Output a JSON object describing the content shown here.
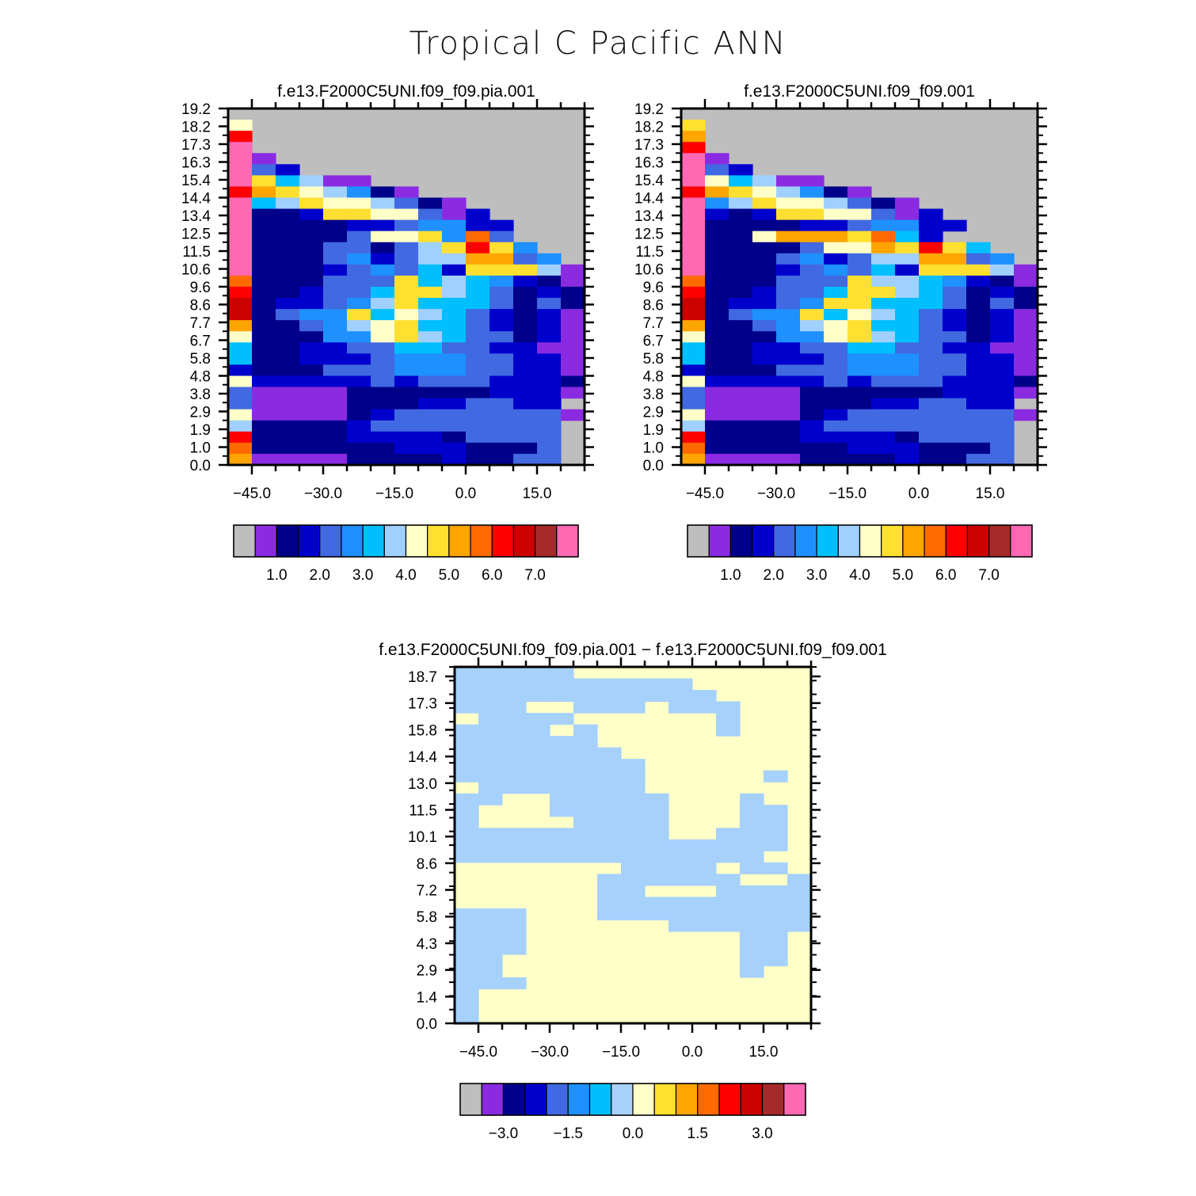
{
  "page_title": "Tropical C Pacific ANN",
  "colors": {
    "panel_palette": [
      "#bebebe",
      "#8a2be2",
      "#00008b",
      "#0000cd",
      "#4169e1",
      "#1e90ff",
      "#00bfff",
      "#a0d0ff",
      "#ffffc8",
      "#ffe030",
      "#ffa500",
      "#ff6a00",
      "#ff0000",
      "#cd0000",
      "#a52a2a",
      "#ff69b4"
    ],
    "gray": "#bebebe",
    "dlight": "#a6d1fc",
    "dyellow": "#ffffc8"
  },
  "chart_data": [
    {
      "type": "heatmap",
      "title": "f.e13.F2000C5UNI.f09_f09.pia.001",
      "x_ticks": [
        "-45.0",
        "-30.0",
        "-15.0",
        "0.0",
        "15.0"
      ],
      "y_ticks": [
        "19.2",
        "18.2",
        "17.3",
        "16.3",
        "15.4",
        "14.4",
        "13.4",
        "12.5",
        "11.5",
        "10.6",
        "9.6",
        "8.6",
        "7.7",
        "6.7",
        "5.8",
        "4.8",
        "3.8",
        "2.9",
        "1.9",
        "1.0",
        "0.0"
      ],
      "xlim": [
        -50,
        25
      ],
      "ylim": [
        0,
        19.2
      ],
      "colorbar_labels": [
        "1.0",
        "2.0",
        "3.0",
        "4.0",
        "5.0",
        "6.0",
        "7.0"
      ],
      "grid_rows": [
        "000000000000000",
        "800000000000000",
        "C00000000000000",
        "F00000000000000",
        "F10000000000000",
        "F43000000000000",
        "F96711000000000",
        "CA9875210000000",
        "F67988742100000",
        "F22399884130000",
        "F22223345533000",
        "F222248895B4000",
        "F222442479C9500",
        "F222453477AA450",
        "F222345463999710",
        "B222444967653210",
        "C223446997642320",
        "D233457966642420",
        "D245596876432310",
        "A224578966432310",
        "8222558976442310",
        "6223344664433110",
        "6223334555443311",
        "3222444555443311",
        "8333334344433321",
        "4111122222233311",
        "4111122233443300",
        "8111123444444410",
        "7222234444444400",
        "C222233332444400",
        "B222222333222400",
        "A111122223224400"
      ]
    },
    {
      "type": "heatmap",
      "title": "f.e13.F2000C5UNI.f09_f09.001",
      "x_ticks": [
        "-45.0",
        "-30.0",
        "-15.0",
        "0.0",
        "15.0"
      ],
      "y_ticks": [
        "19.2",
        "18.2",
        "17.3",
        "16.3",
        "15.4",
        "14.4",
        "13.4",
        "12.5",
        "11.5",
        "10.6",
        "9.6",
        "8.6",
        "7.7",
        "6.7",
        "5.8",
        "4.8",
        "3.8",
        "2.9",
        "1.9",
        "1.0",
        "0.0"
      ],
      "xlim": [
        -50,
        25
      ],
      "ylim": [
        0,
        19.2
      ],
      "colorbar_labels": [
        "1.0",
        "2.0",
        "3.0",
        "4.0",
        "5.0",
        "6.0",
        "7.0"
      ],
      "grid_rows": [
        "000000000000000",
        "900000000000000",
        "A00000000000000",
        "C00000000000000",
        "F10000000000000",
        "F43000000000000",
        "F86711000000000",
        "CA9875210000000",
        "F57988742100000",
        "F32399884130000",
        "F22223345533000",
        "F228AAA9B63000",
        "F2222488A9C9600",
        "F222453477AA450",
        "F222345463999710",
        "B222444977653210",
        "C223446997642320",
        "D233459966642420",
        "D245596876432310",
        "A224578966432310",
        "8222558976442310",
        "6223344664433110",
        "6223334555443311",
        "3222444555443311",
        "8333334344433321",
        "4111122222233311",
        "4111122233443300",
        "8111123444444410",
        "7222234444444400",
        "C222233332444400",
        "B222222333222400",
        "A111122223224400"
      ]
    },
    {
      "type": "heatmap",
      "title": "f.e13.F2000C5UNI.f09_f09.pia.001 − f.e13.F2000C5UNI.f09_f09.001",
      "x_ticks": [
        "-45.0",
        "-30.0",
        "-15.0",
        "0.0",
        "15.0"
      ],
      "y_ticks": [
        "18.7",
        "17.3",
        "15.8",
        "14.4",
        "13.0",
        "11.5",
        "10.1",
        "8.6",
        "7.2",
        "5.8",
        "4.3",
        "2.9",
        "1.4",
        "0.0"
      ],
      "xlim": [
        -50,
        25
      ],
      "ylim": [
        0,
        19.2
      ],
      "colorbar_labels": [
        "-3.0",
        "-1.5",
        "0.0",
        "1.5",
        "3.0"
      ],
      "grid_rows": [
        "LLLLLYYYYYYYYYY",
        "LLLLLLLLLLYYYYY",
        "LLLLLLLLLLLYYYY",
        "LLLYYLLLYLLLYYY",
        "YLLLLYYYYYYLYYY",
        "LLLLYLYYYYYLYYY",
        "LLLLLLYYYYYYYYY",
        "LLLLLLLYYYYYYYY",
        "LLLLLLLLYYYYYYY",
        "LLLLLLLLYYYYYLY",
        "YLLLLLLLYYYYYYY",
        "LLYYLLLLLYYYLYY",
        "LYYYLLLLLYYYLLY",
        "LYYYYLLLLYYYLLY",
        "LLLLLLLLLYYLLLY",
        "LLLLLLLLLLLLLLY",
        "LLLLLLLLLLLLLYY",
        "YYYYYYYLLLLYLLY",
        "YYYYYYLLLLLLYYL",
        "YYYYYYLLYYYLLLL",
        "YYYYYYLLLLLLLLL",
        "LLLYYYLLLLLLLLL",
        "LLLYYYYYYLLLLLL",
        "LLLYYYYYYYYYLLY",
        "LLLYYYYYYYYYLLY",
        "LLYYYYYYYYYYLLY",
        "LLYYYYYYYYYYLYY",
        "LLLYYYYYYYYYYYY",
        "LYYYYYYYYYYYYYY",
        "LYYYYYYYYYYYYYY",
        "LYYYYYYYYYYYYYY"
      ]
    }
  ]
}
